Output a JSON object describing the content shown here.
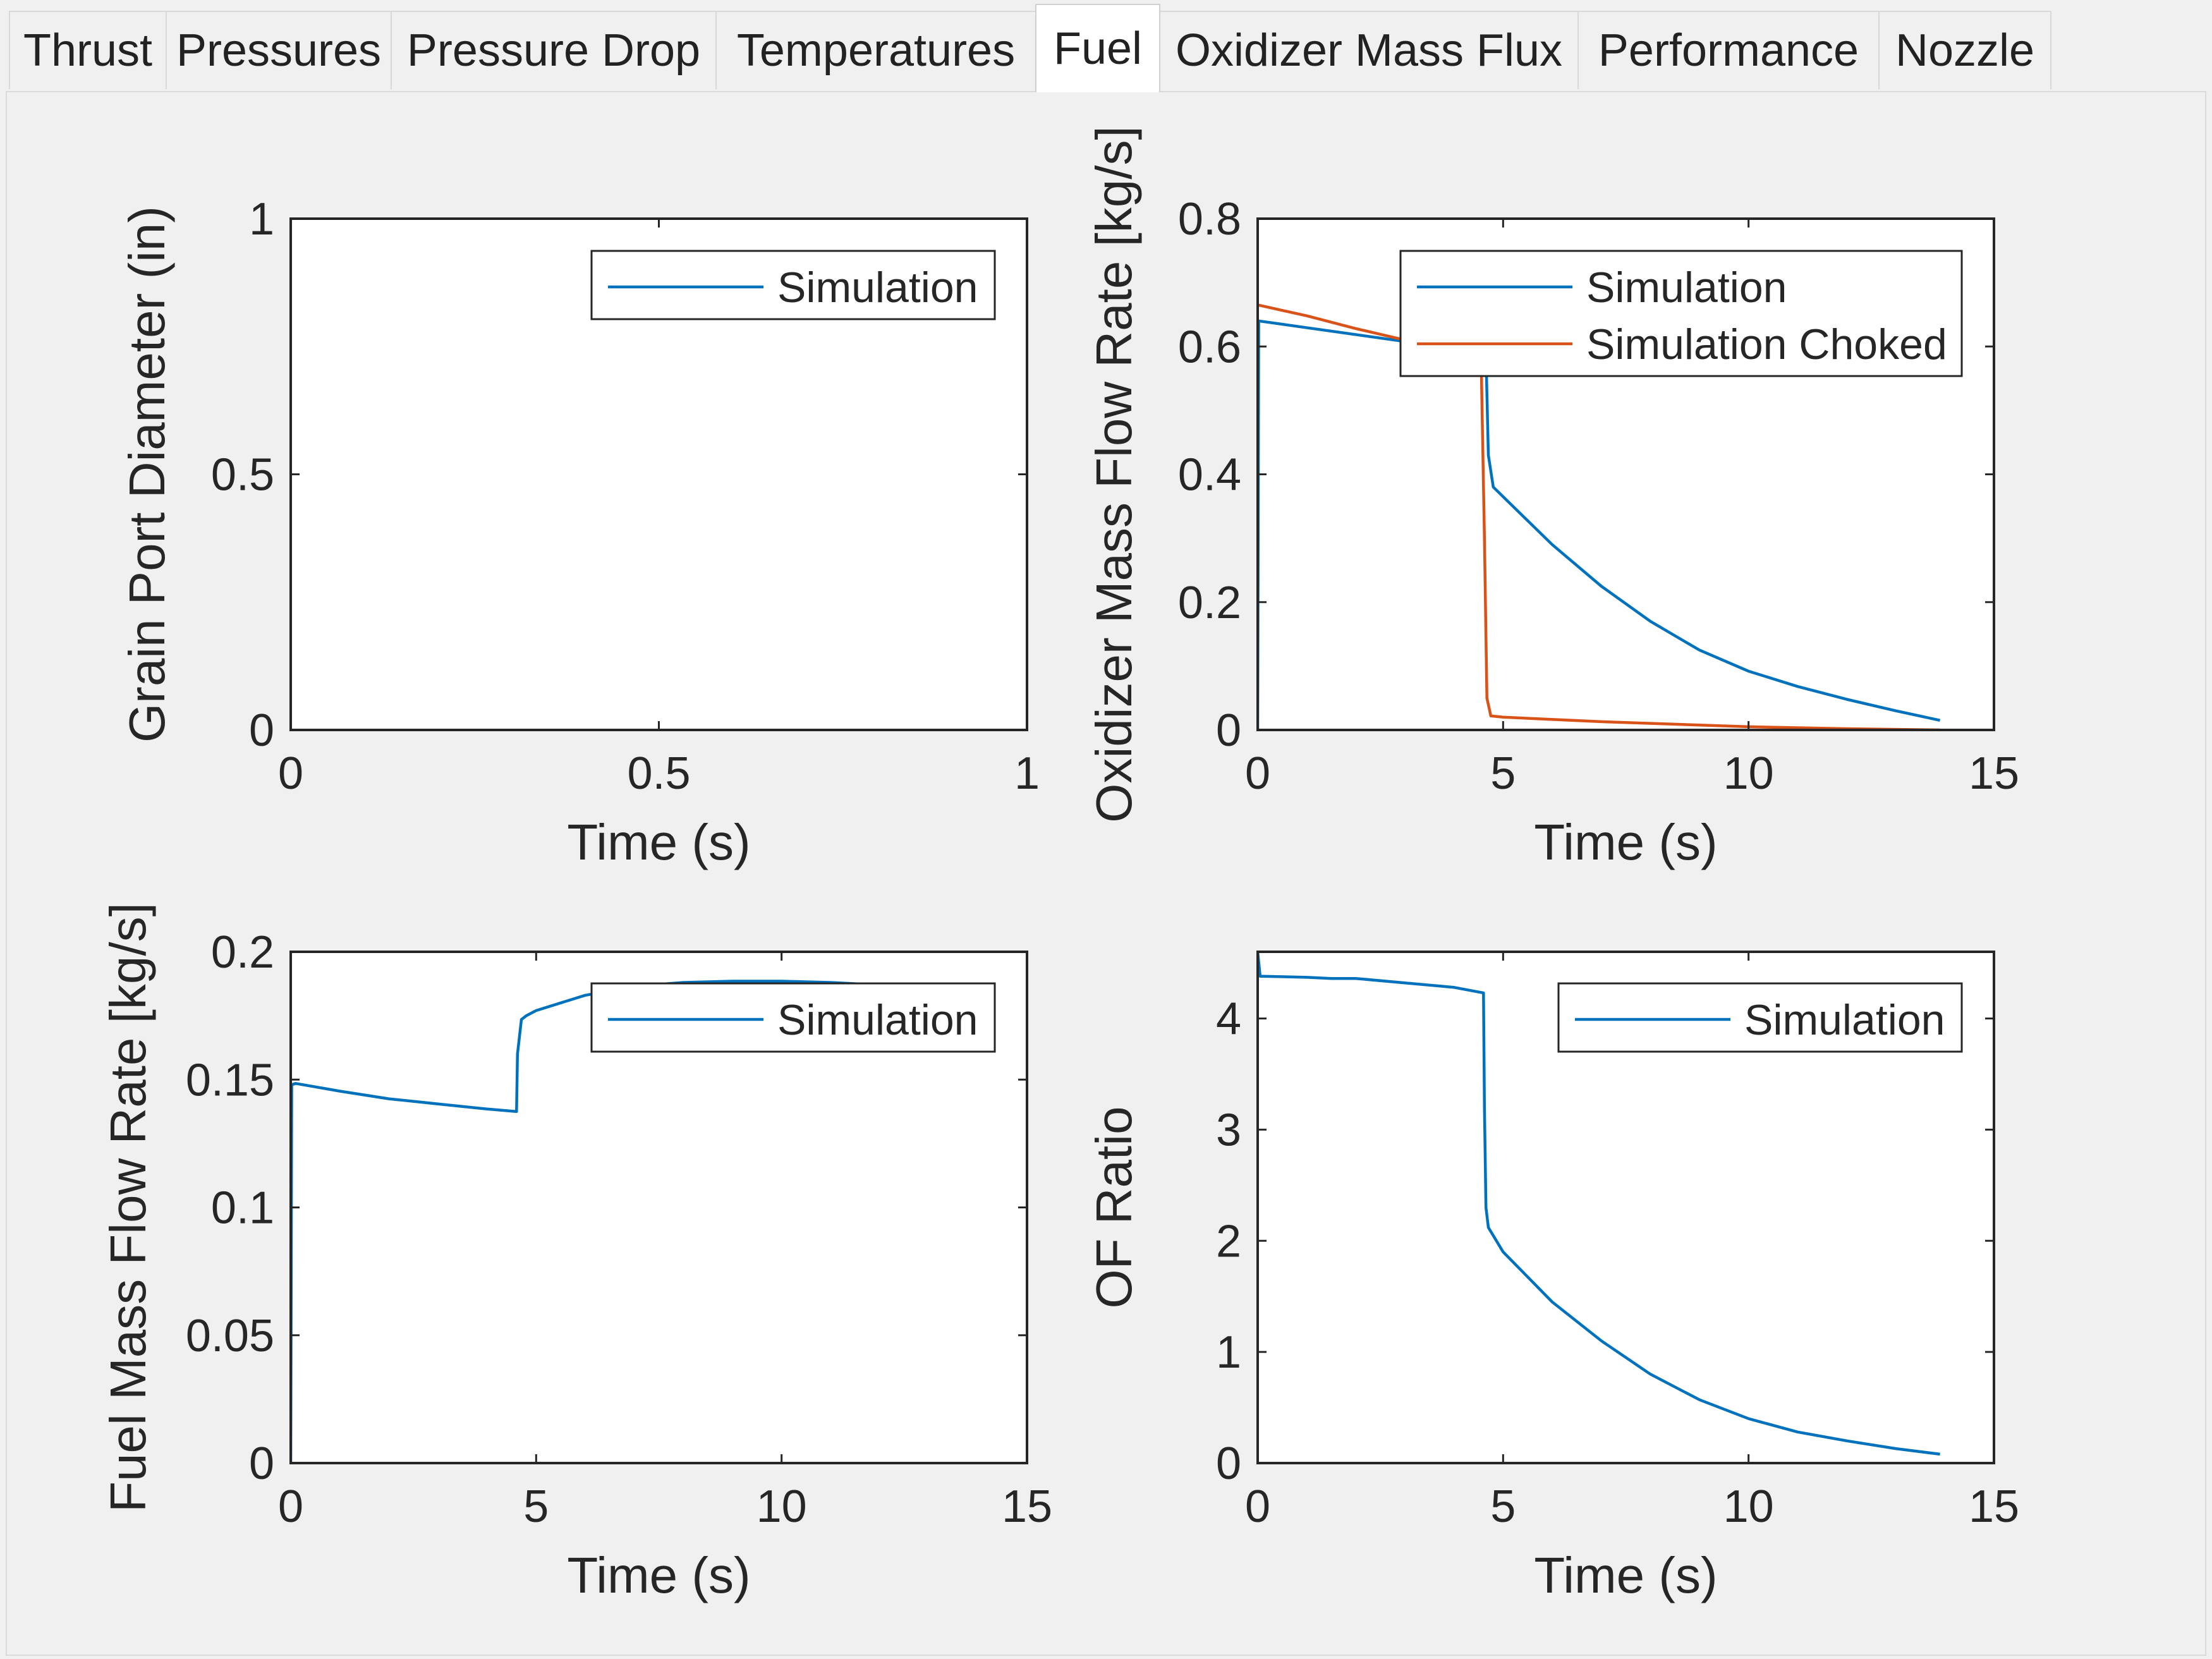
{
  "tabs": [
    {
      "label": "Thrust",
      "active": false
    },
    {
      "label": "Pressures",
      "active": false
    },
    {
      "label": "Pressure Drop",
      "active": false
    },
    {
      "label": "Temperatures",
      "active": false
    },
    {
      "label": "Fuel",
      "active": true
    },
    {
      "label": "Oxidizer Mass Flux",
      "active": false
    },
    {
      "label": "Performance",
      "active": false
    },
    {
      "label": "Nozzle",
      "active": false
    }
  ],
  "colors": {
    "series1": "#0072BD",
    "series2": "#D95319",
    "axis": "#262626"
  },
  "chart_data": [
    {
      "type": "line",
      "xlabel": "Time (s)",
      "ylabel": "Grain Port Diameter (in)",
      "xlim": [
        0,
        1
      ],
      "ylim": [
        0,
        1
      ],
      "xticks": [
        0,
        0.5,
        1
      ],
      "yticks": [
        0,
        0.5,
        1
      ],
      "xtick_labels": [
        "0",
        "0.5",
        "1"
      ],
      "ytick_labels": [
        "0",
        "0.5",
        "1"
      ],
      "legend_position": "top-right",
      "series": [
        {
          "name": "Simulation",
          "color": "#0072BD",
          "x": [],
          "y": []
        }
      ]
    },
    {
      "type": "line",
      "xlabel": "Time (s)",
      "ylabel": "Oxidizer Mass Flow Rate [kg/s]",
      "xlim": [
        0,
        15
      ],
      "ylim": [
        0,
        0.8
      ],
      "xticks": [
        0,
        5,
        10,
        15
      ],
      "yticks": [
        0,
        0.2,
        0.4,
        0.6,
        0.8
      ],
      "xtick_labels": [
        "0",
        "5",
        "10",
        "15"
      ],
      "ytick_labels": [
        "0",
        "0.2",
        "0.4",
        "0.6",
        "0.8"
      ],
      "legend_position": "top-right",
      "series": [
        {
          "name": "Simulation",
          "color": "#0072BD",
          "x": [
            0,
            0.02,
            4.65,
            4.7,
            4.8,
            5,
            6,
            7,
            8,
            9,
            10,
            11,
            12,
            13,
            13.9
          ],
          "y": [
            0,
            0.64,
            0.59,
            0.43,
            0.38,
            0.365,
            0.29,
            0.225,
            0.17,
            0.125,
            0.092,
            0.068,
            0.048,
            0.03,
            0.015
          ]
        },
        {
          "name": "Simulation Choked",
          "color": "#D95319",
          "x": [
            0,
            1,
            2,
            3,
            4,
            4.55,
            4.62,
            4.67,
            4.75,
            5,
            7,
            10,
            12,
            13.9
          ],
          "y": [
            0.665,
            0.648,
            0.628,
            0.61,
            0.595,
            0.59,
            0.3,
            0.05,
            0.022,
            0.02,
            0.013,
            0.005,
            0.002,
            0
          ]
        }
      ]
    },
    {
      "type": "line",
      "xlabel": "Time (s)",
      "ylabel": "Fuel Mass Flow Rate [kg/s]",
      "xlim": [
        0,
        15
      ],
      "ylim": [
        0,
        0.2
      ],
      "xticks": [
        0,
        5,
        10,
        15
      ],
      "yticks": [
        0,
        0.05,
        0.1,
        0.15,
        0.2
      ],
      "xtick_labels": [
        "0",
        "5",
        "10",
        "15"
      ],
      "ytick_labels": [
        "0",
        "0.05",
        "0.1",
        "0.15",
        "0.2"
      ],
      "legend_position": "top-right",
      "series": [
        {
          "name": "Simulation",
          "color": "#0072BD",
          "x": [
            0,
            0.02,
            0.1,
            1,
            2,
            3,
            4,
            4.6,
            4.62,
            4.7,
            4.8,
            5,
            6,
            7,
            8,
            9,
            10,
            11,
            12,
            13,
            13.9
          ],
          "y": [
            0,
            0.148,
            0.1485,
            0.1455,
            0.1425,
            0.1405,
            0.1385,
            0.1375,
            0.16,
            0.1735,
            0.175,
            0.177,
            0.183,
            0.1865,
            0.188,
            0.1885,
            0.1885,
            0.188,
            0.187,
            0.1855,
            0.184
          ]
        }
      ]
    },
    {
      "type": "line",
      "xlabel": "Time (s)",
      "ylabel": "OF Ratio",
      "xlim": [
        0,
        15
      ],
      "ylim": [
        0,
        4.6
      ],
      "xticks": [
        0,
        5,
        10,
        15
      ],
      "yticks": [
        0,
        1,
        2,
        3,
        4
      ],
      "xtick_labels": [
        "0",
        "5",
        "10",
        "15"
      ],
      "ytick_labels": [
        "0",
        "1",
        "2",
        "3",
        "4"
      ],
      "legend_position": "top-right",
      "series": [
        {
          "name": "Simulation",
          "color": "#0072BD",
          "x": [
            0,
            0.05,
            0.1,
            1,
            1.5,
            2,
            3,
            4,
            4.6,
            4.62,
            4.65,
            4.7,
            5,
            6,
            7,
            8,
            9,
            10,
            11,
            12,
            13,
            13.9
          ],
          "y": [
            4.6,
            4.38,
            4.38,
            4.37,
            4.36,
            4.36,
            4.32,
            4.28,
            4.23,
            3.2,
            2.3,
            2.12,
            1.9,
            1.45,
            1.1,
            0.8,
            0.57,
            0.4,
            0.28,
            0.2,
            0.13,
            0.08
          ]
        }
      ]
    }
  ]
}
